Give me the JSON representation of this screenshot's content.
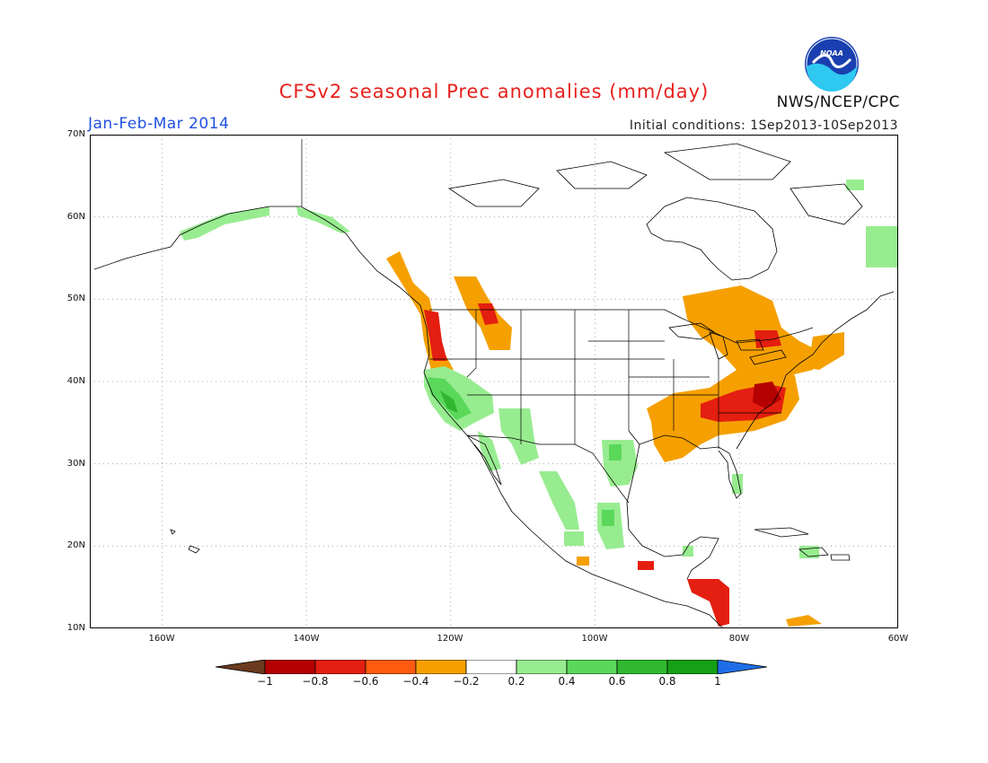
{
  "title": "CFSv2 seasonal Prec anomalies (mm/day)",
  "season": "Jan-Feb-Mar 2014",
  "initial_conditions": "Initial conditions: 1Sep2013-10Sep2013",
  "agency": "NWS/NCEP/CPC",
  "logo_text": "NOAA",
  "map": {
    "lon_range": [
      -172,
      -60
    ],
    "lat_range": [
      10,
      70
    ],
    "y_ticks": [
      "10N",
      "20N",
      "30N",
      "40N",
      "50N",
      "60N",
      "70N"
    ],
    "x_ticks": [
      "160W",
      "140W",
      "120W",
      "100W",
      "80W",
      "60W"
    ],
    "grid": true
  },
  "colorbar": {
    "labels": [
      "−1",
      "−0.8",
      "−0.6",
      "−0.4",
      "−0.2",
      "0.2",
      "0.4",
      "0.6",
      "0.8",
      "1"
    ],
    "colors": [
      "#6b3a1e",
      "#b40000",
      "#e41e10",
      "#ff5a10",
      "#f5a000",
      "#ffffff",
      "#98ec90",
      "#5ad85a",
      "#30b830",
      "#15a015",
      "#1f6ee8"
    ]
  }
}
